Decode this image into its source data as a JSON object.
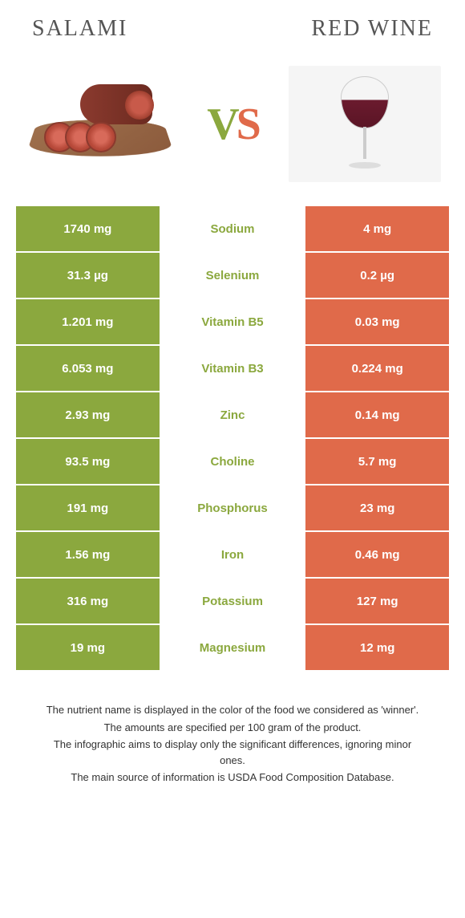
{
  "food_left": {
    "title": "Salami"
  },
  "food_right": {
    "title": "Red Wine"
  },
  "vs": {
    "v": "V",
    "s": "S"
  },
  "colors": {
    "green": "#8ba83e",
    "orange": "#e06a4a"
  },
  "rows": [
    {
      "nutrient": "Sodium",
      "left": "1740 mg",
      "right": "4 mg",
      "winner": "left"
    },
    {
      "nutrient": "Selenium",
      "left": "31.3 µg",
      "right": "0.2 µg",
      "winner": "left"
    },
    {
      "nutrient": "Vitamin B5",
      "left": "1.201 mg",
      "right": "0.03 mg",
      "winner": "left"
    },
    {
      "nutrient": "Vitamin B3",
      "left": "6.053 mg",
      "right": "0.224 mg",
      "winner": "left"
    },
    {
      "nutrient": "Zinc",
      "left": "2.93 mg",
      "right": "0.14 mg",
      "winner": "left"
    },
    {
      "nutrient": "Choline",
      "left": "93.5 mg",
      "right": "5.7 mg",
      "winner": "left"
    },
    {
      "nutrient": "Phosphorus",
      "left": "191 mg",
      "right": "23 mg",
      "winner": "left"
    },
    {
      "nutrient": "Iron",
      "left": "1.56 mg",
      "right": "0.46 mg",
      "winner": "left"
    },
    {
      "nutrient": "Potassium",
      "left": "316 mg",
      "right": "127 mg",
      "winner": "left"
    },
    {
      "nutrient": "Magnesium",
      "left": "19 mg",
      "right": "12 mg",
      "winner": "left"
    }
  ],
  "footer": {
    "line1": "The nutrient name is displayed in the color of the food we considered as 'winner'.",
    "line2": "The amounts are specified per 100 gram of the product.",
    "line3": "The infographic aims to display only the significant differences, ignoring minor ones.",
    "line4": "The main source of information is USDA Food Composition Database."
  }
}
